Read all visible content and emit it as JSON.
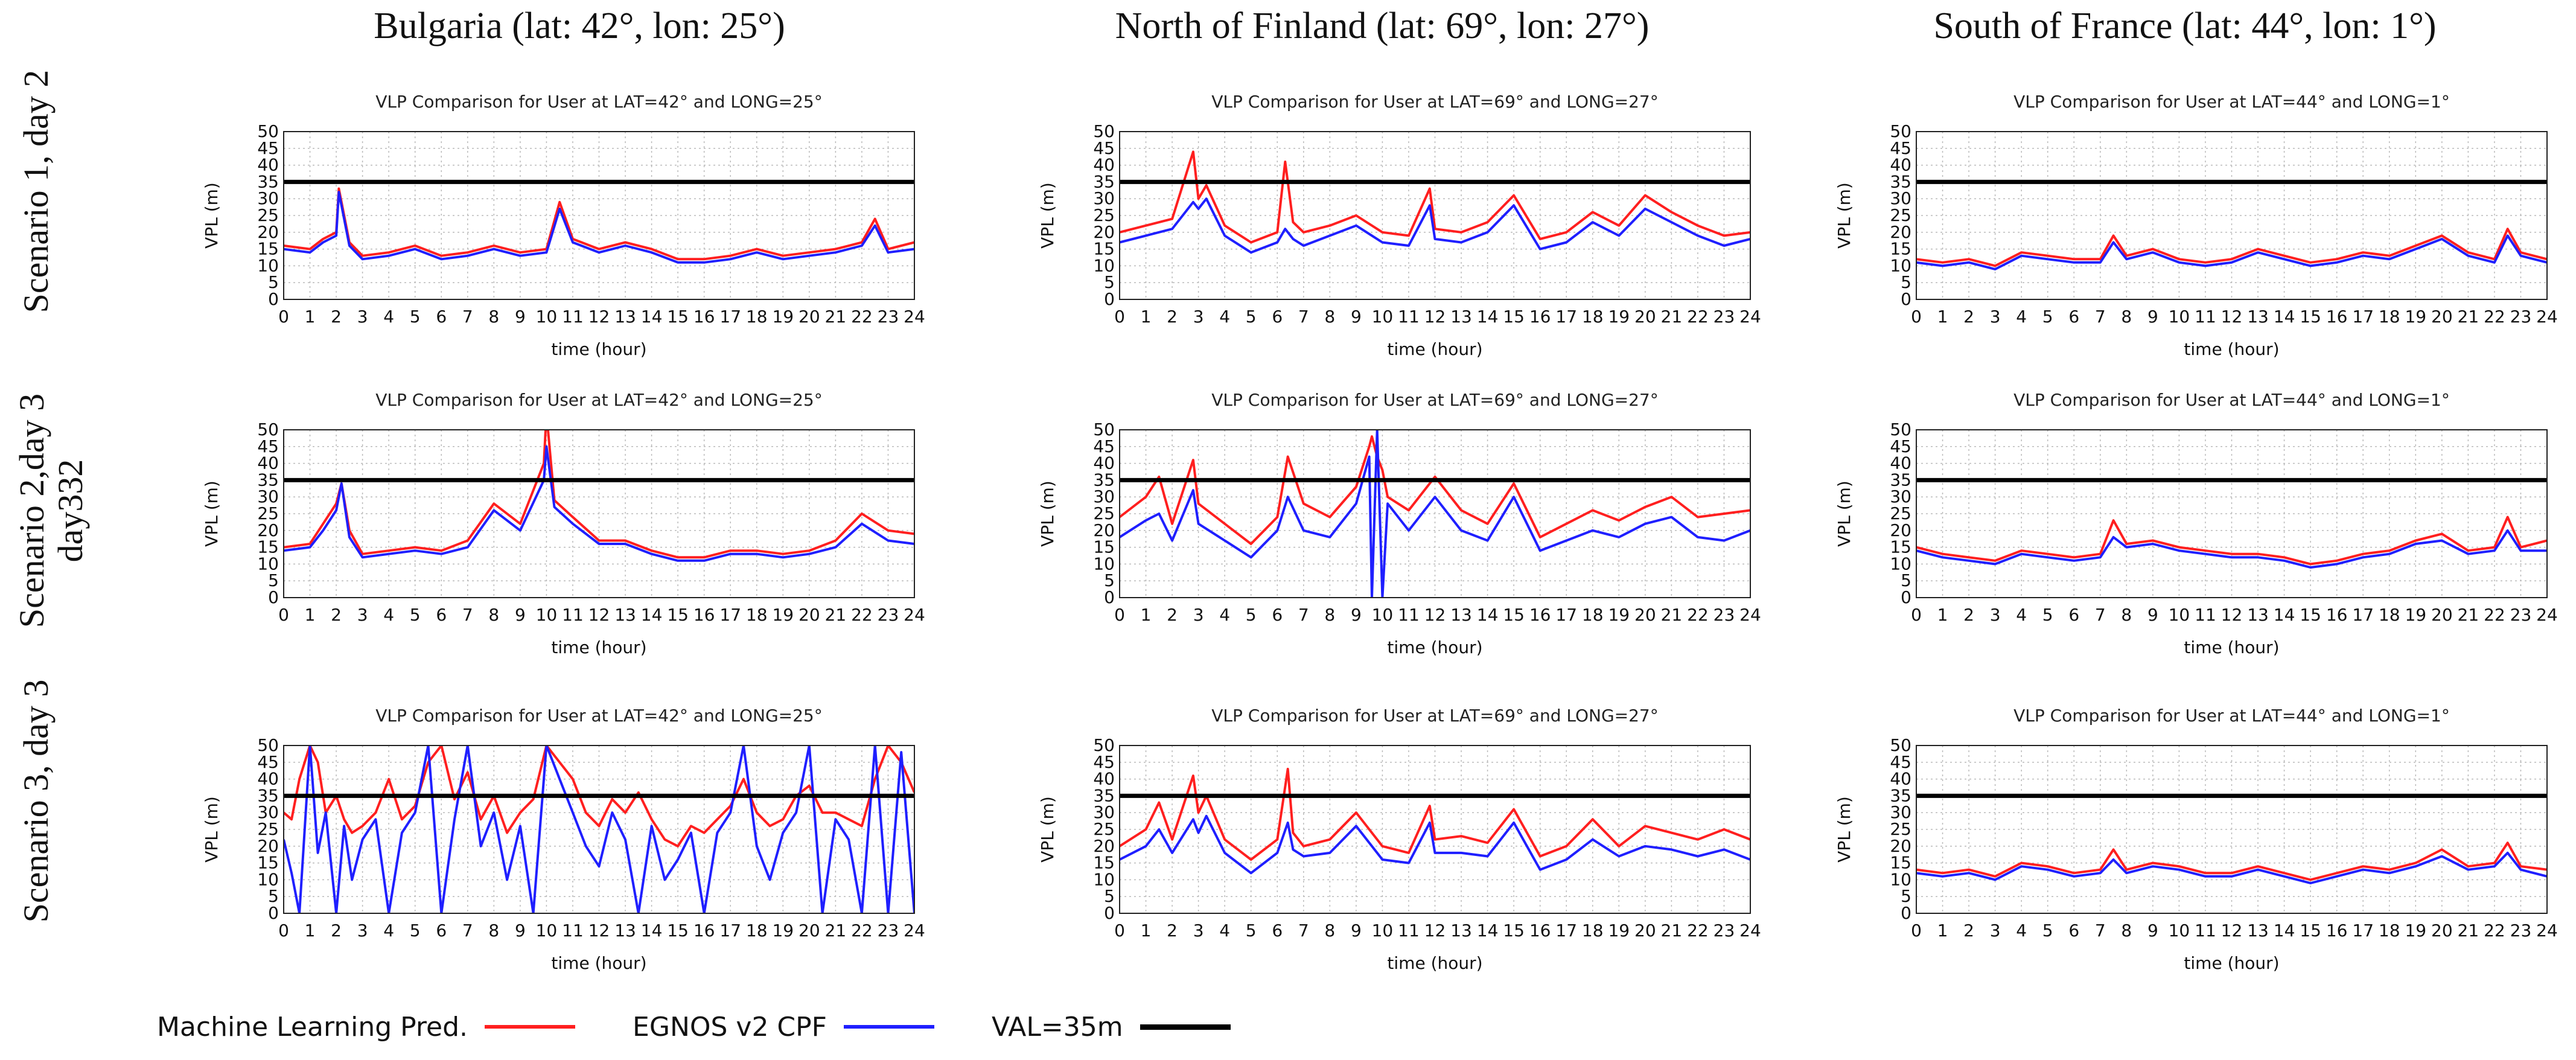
{
  "column_headers": [
    "Bulgaria (lat: 42°, lon: 25°)",
    "North of Finland (lat: 69°, lon: 27°)",
    "South of France (lat: 44°, lon: 1°)"
  ],
  "row_headers": [
    {
      "line1": "Scenario 1, day 2",
      "line2": ""
    },
    {
      "line1": "Scenario 2,day 3",
      "line2": "day332"
    },
    {
      "line1": "Scenario 3, day 3",
      "line2": ""
    }
  ],
  "legend": [
    {
      "label": "Machine Learning Pred.",
      "color": "#ff1f1f"
    },
    {
      "label": "EGNOS v2 CPF",
      "color": "#1f1fff"
    },
    {
      "label": "VAL=35m",
      "color": "#000000"
    }
  ],
  "colors": {
    "ml": "#ff1f1f",
    "egnos": "#1f1fff",
    "val": "#000000",
    "grid": "#bbbbbb"
  },
  "chart_data": [
    {
      "type": "line",
      "title": "VLP Comparison for User at LAT=42° and LONG=25°",
      "xlabel": "time (hour)",
      "ylabel": "VPL (m)",
      "xlim": [
        0,
        24
      ],
      "ylim": [
        0,
        50
      ],
      "val": 35,
      "grid": true,
      "x": [
        0,
        1,
        1.5,
        2,
        2.1,
        2.5,
        3,
        4,
        5,
        6,
        7,
        8,
        9,
        10,
        10.5,
        11,
        12,
        13,
        14,
        15,
        16,
        17,
        18,
        19,
        20,
        21,
        22,
        22.5,
        23,
        24
      ],
      "series": [
        {
          "name": "Machine Learning Pred.",
          "values": [
            16,
            15,
            18,
            20,
            33,
            17,
            13,
            14,
            16,
            13,
            14,
            16,
            14,
            15,
            29,
            18,
            15,
            17,
            15,
            12,
            12,
            13,
            15,
            13,
            14,
            15,
            17,
            24,
            15,
            17
          ]
        },
        {
          "name": "EGNOS v2 CPF",
          "values": [
            15,
            14,
            17,
            19,
            32,
            16,
            12,
            13,
            15,
            12,
            13,
            15,
            13,
            14,
            27,
            17,
            14,
            16,
            14,
            11,
            11,
            12,
            14,
            12,
            13,
            14,
            16,
            22,
            14,
            15
          ]
        }
      ]
    },
    {
      "type": "line",
      "title": "VLP Comparison for User at LAT=69° and LONG=27°",
      "xlabel": "time (hour)",
      "ylabel": "VPL (m)",
      "xlim": [
        0,
        24
      ],
      "ylim": [
        0,
        50
      ],
      "val": 35,
      "grid": true,
      "x": [
        0,
        1,
        2,
        2.8,
        3,
        3.3,
        4,
        5,
        6,
        6.3,
        6.6,
        7,
        8,
        9,
        10,
        11,
        11.8,
        12,
        13,
        14,
        15,
        16,
        17,
        18,
        19,
        20,
        21,
        22,
        23,
        24
      ],
      "series": [
        {
          "name": "Machine Learning Pred.",
          "values": [
            20,
            22,
            24,
            44,
            30,
            34,
            22,
            17,
            20,
            41,
            23,
            20,
            22,
            25,
            20,
            19,
            33,
            21,
            20,
            23,
            31,
            18,
            20,
            26,
            22,
            31,
            26,
            22,
            19,
            20
          ]
        },
        {
          "name": "EGNOS v2 CPF",
          "values": [
            17,
            19,
            21,
            29,
            27,
            30,
            19,
            14,
            17,
            21,
            18,
            16,
            19,
            22,
            17,
            16,
            28,
            18,
            17,
            20,
            28,
            15,
            17,
            23,
            19,
            27,
            23,
            19,
            16,
            18
          ]
        }
      ]
    },
    {
      "type": "line",
      "title": "VLP Comparison for User at LAT=44° and LONG=1°",
      "xlabel": "time (hour)",
      "ylabel": "VPL (m)",
      "xlim": [
        0,
        24
      ],
      "ylim": [
        0,
        50
      ],
      "val": 35,
      "grid": true,
      "x": [
        0,
        1,
        2,
        3,
        4,
        5,
        6,
        7,
        7.5,
        8,
        9,
        10,
        11,
        12,
        13,
        14,
        15,
        16,
        17,
        18,
        19,
        20,
        21,
        22,
        22.5,
        23,
        24
      ],
      "series": [
        {
          "name": "Machine Learning Pred.",
          "values": [
            12,
            11,
            12,
            10,
            14,
            13,
            12,
            12,
            19,
            13,
            15,
            12,
            11,
            12,
            15,
            13,
            11,
            12,
            14,
            13,
            16,
            19,
            14,
            12,
            21,
            14,
            12
          ]
        },
        {
          "name": "EGNOS v2 CPF",
          "values": [
            11,
            10,
            11,
            9,
            13,
            12,
            11,
            11,
            17,
            12,
            14,
            11,
            10,
            11,
            14,
            12,
            10,
            11,
            13,
            12,
            15,
            18,
            13,
            11,
            19,
            13,
            11
          ]
        }
      ]
    },
    {
      "type": "line",
      "title": "VLP Comparison for User at LAT=42° and LONG=25°",
      "xlabel": "time (hour)",
      "ylabel": "VPL (m)",
      "xlim": [
        0,
        24
      ],
      "ylim": [
        0,
        50
      ],
      "val": 35,
      "grid": true,
      "x": [
        0,
        1,
        1.5,
        2,
        2.2,
        2.5,
        3,
        4,
        5,
        6,
        7,
        8,
        9,
        9.9,
        10,
        10.3,
        11,
        12,
        13,
        14,
        15,
        16,
        17,
        18,
        19,
        20,
        21,
        22,
        23,
        24
      ],
      "series": [
        {
          "name": "Machine Learning Pred.",
          "values": [
            15,
            16,
            22,
            28,
            34,
            20,
            13,
            14,
            15,
            14,
            17,
            28,
            22,
            40,
            55,
            29,
            24,
            17,
            17,
            14,
            12,
            12,
            14,
            14,
            13,
            14,
            17,
            25,
            20,
            19
          ]
        },
        {
          "name": "EGNOS v2 CPF",
          "values": [
            14,
            15,
            20,
            26,
            34,
            18,
            12,
            13,
            14,
            13,
            15,
            26,
            20,
            35,
            45,
            27,
            22,
            16,
            16,
            13,
            11,
            11,
            13,
            13,
            12,
            13,
            15,
            22,
            17,
            16
          ]
        }
      ]
    },
    {
      "type": "line",
      "title": "VLP Comparison for User at LAT=69° and LONG=27°",
      "xlabel": "time (hour)",
      "ylabel": "VPL (m)",
      "xlim": [
        0,
        24
      ],
      "ylim": [
        0,
        50
      ],
      "val": 35,
      "grid": true,
      "x": [
        0,
        1,
        1.5,
        2,
        2.8,
        3,
        4,
        5,
        6,
        6.4,
        7,
        8,
        9,
        9.5,
        9.6,
        9.8,
        10,
        10.2,
        11,
        12,
        13,
        14,
        15,
        16,
        17,
        18,
        19,
        20,
        21,
        22,
        23,
        24
      ],
      "series": [
        {
          "name": "Machine Learning Pred.",
          "values": [
            24,
            30,
            36,
            22,
            41,
            28,
            22,
            16,
            24,
            42,
            28,
            24,
            33,
            45,
            48,
            42,
            38,
            30,
            26,
            36,
            26,
            22,
            34,
            18,
            22,
            26,
            23,
            27,
            30,
            24,
            25,
            26
          ]
        },
        {
          "name": "EGNOS v2 CPF",
          "values": [
            18,
            23,
            25,
            17,
            32,
            22,
            17,
            12,
            20,
            30,
            20,
            18,
            28,
            42,
            0,
            50,
            0,
            28,
            20,
            30,
            20,
            17,
            30,
            14,
            17,
            20,
            18,
            22,
            24,
            18,
            17,
            20
          ]
        }
      ]
    },
    {
      "type": "line",
      "title": "VLP Comparison for User at LAT=44° and LONG=1°",
      "xlabel": "time (hour)",
      "ylabel": "VPL (m)",
      "xlim": [
        0,
        24
      ],
      "ylim": [
        0,
        50
      ],
      "val": 35,
      "grid": true,
      "x": [
        0,
        1,
        2,
        3,
        4,
        5,
        6,
        7,
        7.5,
        8,
        9,
        10,
        11,
        12,
        13,
        14,
        15,
        16,
        17,
        18,
        19,
        20,
        21,
        22,
        22.5,
        23,
        24
      ],
      "series": [
        {
          "name": "Machine Learning Pred.",
          "values": [
            15,
            13,
            12,
            11,
            14,
            13,
            12,
            13,
            23,
            16,
            17,
            15,
            14,
            13,
            13,
            12,
            10,
            11,
            13,
            14,
            17,
            19,
            14,
            15,
            24,
            15,
            17
          ]
        },
        {
          "name": "EGNOS v2 CPF",
          "values": [
            14,
            12,
            11,
            10,
            13,
            12,
            11,
            12,
            18,
            15,
            16,
            14,
            13,
            12,
            12,
            11,
            9,
            10,
            12,
            13,
            16,
            17,
            13,
            14,
            20,
            14,
            14
          ]
        }
      ]
    },
    {
      "type": "line",
      "title": "VLP Comparison for User at LAT=42° and LONG=25°",
      "xlabel": "time (hour)",
      "ylabel": "VPL (m)",
      "xlim": [
        0,
        24
      ],
      "ylim": [
        0,
        50
      ],
      "val": 35,
      "grid": true,
      "x": [
        0,
        0.3,
        0.6,
        1,
        1.3,
        1.6,
        2,
        2.3,
        2.6,
        3,
        3.5,
        4,
        4.5,
        5,
        5.5,
        6,
        6.5,
        7,
        7.5,
        8,
        8.5,
        9,
        9.5,
        10,
        10.5,
        11,
        11.5,
        12,
        12.5,
        13,
        13.5,
        14,
        14.5,
        15,
        15.5,
        16,
        16.5,
        17,
        17.5,
        18,
        18.5,
        19,
        19.5,
        20,
        20.5,
        21,
        21.5,
        22,
        22.5,
        23,
        23.5,
        24
      ],
      "series": [
        {
          "name": "Machine Learning Pred.",
          "values": [
            30,
            28,
            40,
            50,
            45,
            30,
            35,
            28,
            24,
            26,
            30,
            40,
            28,
            32,
            45,
            50,
            34,
            42,
            28,
            35,
            24,
            30,
            34,
            50,
            45,
            40,
            30,
            26,
            34,
            30,
            36,
            28,
            22,
            20,
            26,
            24,
            28,
            32,
            40,
            30,
            26,
            28,
            35,
            38,
            30,
            30,
            28,
            26,
            40,
            50,
            45,
            36
          ]
        },
        {
          "name": "EGNOS v2 CPF",
          "values": [
            22,
            12,
            0,
            50,
            18,
            30,
            0,
            26,
            10,
            22,
            28,
            0,
            24,
            30,
            50,
            0,
            28,
            50,
            20,
            30,
            10,
            26,
            0,
            50,
            40,
            30,
            20,
            14,
            30,
            22,
            0,
            26,
            10,
            16,
            24,
            0,
            24,
            30,
            50,
            20,
            10,
            24,
            30,
            50,
            0,
            28,
            22,
            0,
            50,
            0,
            48,
            0
          ]
        }
      ]
    },
    {
      "type": "line",
      "title": "VLP Comparison for User at LAT=69° and LONG=27°",
      "xlabel": "time (hour)",
      "ylabel": "VPL (m)",
      "xlim": [
        0,
        24
      ],
      "ylim": [
        0,
        50
      ],
      "val": 35,
      "grid": true,
      "x": [
        0,
        1,
        1.5,
        2,
        2.8,
        3,
        3.3,
        4,
        5,
        6,
        6.4,
        6.6,
        7,
        8,
        9,
        10,
        11,
        11.8,
        12,
        13,
        14,
        15,
        16,
        17,
        18,
        19,
        20,
        21,
        22,
        23,
        24
      ],
      "series": [
        {
          "name": "Machine Learning Pred.",
          "values": [
            20,
            25,
            33,
            22,
            41,
            30,
            35,
            22,
            16,
            22,
            43,
            24,
            20,
            22,
            30,
            20,
            18,
            32,
            22,
            23,
            21,
            31,
            17,
            20,
            28,
            20,
            26,
            24,
            22,
            25,
            22
          ]
        },
        {
          "name": "EGNOS v2 CPF",
          "values": [
            16,
            20,
            25,
            18,
            28,
            24,
            29,
            18,
            12,
            18,
            27,
            19,
            17,
            18,
            26,
            16,
            15,
            27,
            18,
            18,
            17,
            27,
            13,
            16,
            22,
            17,
            20,
            19,
            17,
            19,
            16
          ]
        }
      ]
    },
    {
      "type": "line",
      "title": "VLP Comparison for User at LAT=44° and LONG=1°",
      "xlabel": "time (hour)",
      "ylabel": "VPL (m)",
      "xlim": [
        0,
        24
      ],
      "ylim": [
        0,
        50
      ],
      "val": 35,
      "grid": true,
      "x": [
        0,
        1,
        2,
        3,
        4,
        5,
        6,
        7,
        7.5,
        8,
        9,
        10,
        11,
        12,
        13,
        14,
        15,
        16,
        17,
        18,
        19,
        20,
        21,
        22,
        22.5,
        23,
        24
      ],
      "series": [
        {
          "name": "Machine Learning Pred.",
          "values": [
            13,
            12,
            13,
            11,
            15,
            14,
            12,
            13,
            19,
            13,
            15,
            14,
            12,
            12,
            14,
            12,
            10,
            12,
            14,
            13,
            15,
            19,
            14,
            15,
            21,
            14,
            13
          ]
        },
        {
          "name": "EGNOS v2 CPF",
          "values": [
            12,
            11,
            12,
            10,
            14,
            13,
            11,
            12,
            16,
            12,
            14,
            13,
            11,
            11,
            13,
            11,
            9,
            11,
            13,
            12,
            14,
            17,
            13,
            14,
            18,
            13,
            11
          ]
        }
      ]
    }
  ]
}
